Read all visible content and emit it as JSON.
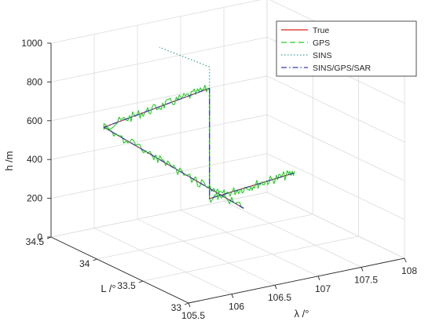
{
  "chart_data": {
    "type": "line",
    "projection": "3d",
    "grid": true,
    "legend_position": "top-right",
    "xlabel": "λ /°",
    "ylabel": "L /°",
    "zlabel": "h /m",
    "xlim": [
      105.5,
      108
    ],
    "ylim": [
      33,
      34.5
    ],
    "zlim": [
      0,
      1000
    ],
    "xticks": [
      "105.5",
      "106",
      "106.5",
      "107",
      "107.5",
      "108"
    ],
    "yticks": [
      "33",
      "33.5",
      "34",
      "34.5"
    ],
    "zticks": [
      "0",
      "200",
      "400",
      "600",
      "800",
      "1000"
    ],
    "series": [
      {
        "name": "True",
        "color": "#e0201b",
        "dash": "solid",
        "points": [
          {
            "x": 106.35,
            "y": 33.2,
            "z": 365
          },
          {
            "x": 105.9,
            "y": 34.3,
            "z": 575
          },
          {
            "x": 107.1,
            "y": 34.28,
            "z": 670
          },
          {
            "x": 107.1,
            "y": 34.28,
            "z": 100
          },
          {
            "x": 107.98,
            "y": 34.18,
            "z": 175
          }
        ]
      },
      {
        "name": "GPS",
        "color": "#1fd11f",
        "dash": "dashed",
        "points": [
          {
            "x": 106.35,
            "y": 33.2,
            "z": 365
          },
          {
            "x": 105.9,
            "y": 34.3,
            "z": 575
          },
          {
            "x": 107.1,
            "y": 34.28,
            "z": 670
          },
          {
            "x": 107.1,
            "y": 34.28,
            "z": 100
          },
          {
            "x": 107.98,
            "y": 34.18,
            "z": 175
          }
        ]
      },
      {
        "name": "SINS",
        "color": "#3a9e9a",
        "dash": "dotted",
        "points": [
          {
            "x": 106.35,
            "y": 33.2,
            "z": 365
          },
          {
            "x": 105.9,
            "y": 34.3,
            "z": 575
          },
          {
            "x": 107.1,
            "y": 34.28,
            "z": 670
          },
          {
            "x": 107.1,
            "y": 34.28,
            "z": 780
          },
          {
            "x": 106.7,
            "y": 34.45,
            "z": 880
          }
        ]
      },
      {
        "name": "SINS/GPS/SAR",
        "color": "#3b3bb0",
        "dash": "dashdot",
        "points": [
          {
            "x": 106.35,
            "y": 33.2,
            "z": 365
          },
          {
            "x": 105.9,
            "y": 34.3,
            "z": 575
          },
          {
            "x": 107.1,
            "y": 34.28,
            "z": 670
          },
          {
            "x": 107.1,
            "y": 34.28,
            "z": 100
          },
          {
            "x": 107.98,
            "y": 34.18,
            "z": 175
          }
        ]
      }
    ]
  }
}
